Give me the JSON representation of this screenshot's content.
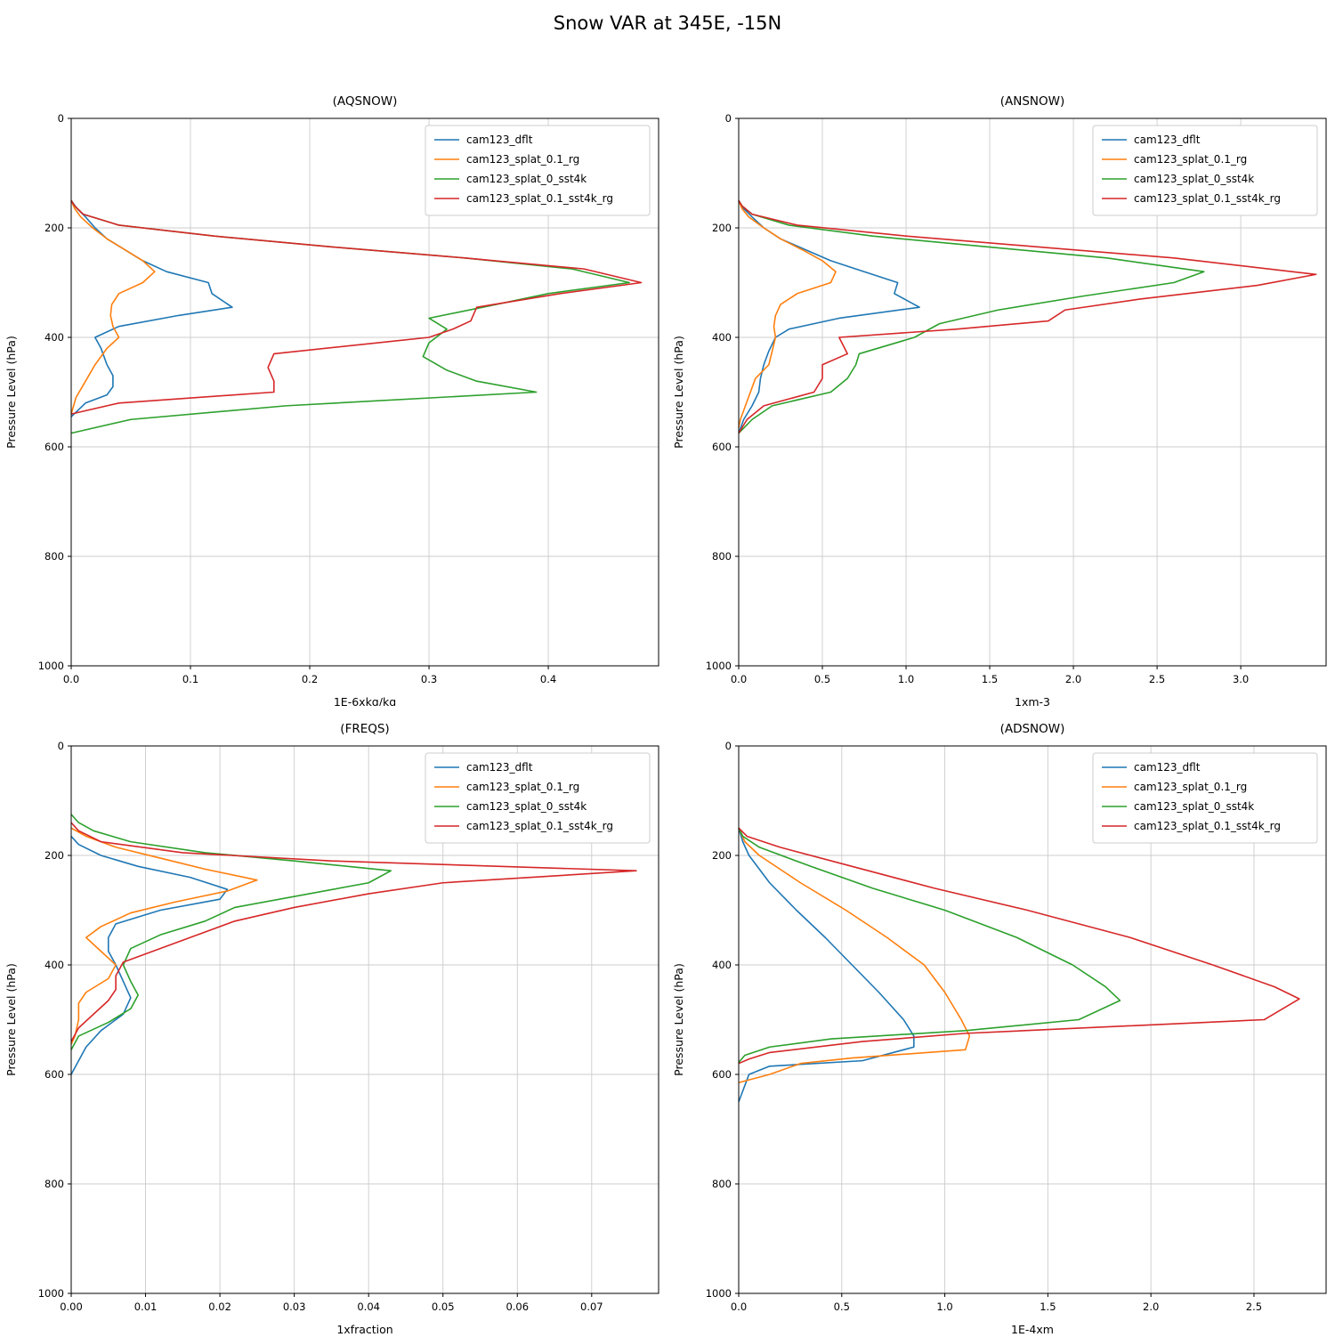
{
  "page_title": "Snow VAR at 345E, -15N",
  "colors": {
    "blue": "#1f77b4",
    "orange": "#ff7f0e",
    "green": "#2ca02c",
    "red": "#d62728"
  },
  "legend_labels": [
    "cam123_dflt",
    "cam123_splat_0.1_rg",
    "cam123_splat_0_sst4k",
    "cam123_splat_0.1_sst4k_rg"
  ],
  "chart_data": [
    {
      "id": "aqsnow",
      "type": "line",
      "title": "(AQSNOW)",
      "xlabel": "1E-6xkg/kg",
      "ylabel": "Pressure Level (hPa)",
      "xlim": [
        0,
        0.4925
      ],
      "ymin": 0,
      "ymax": 1000,
      "y_inverted": true,
      "grid": true,
      "legend_position": "upper right",
      "xticks": [
        0,
        0.1,
        0.2,
        0.3,
        0.4
      ],
      "xtick_labels": [
        "0.0",
        "0.1",
        "0.2",
        "0.3",
        "0.4"
      ],
      "yticks": [
        0,
        200,
        400,
        600,
        800,
        1000
      ],
      "ytick_labels": [
        "0",
        "200",
        "400",
        "600",
        "800",
        "1000"
      ],
      "series": [
        {
          "name": "cam123_dflt",
          "color": "#1f77b4",
          "pressure": [
            150,
            165,
            180,
            200,
            220,
            240,
            260,
            280,
            300,
            320,
            345,
            360,
            380,
            400,
            420,
            450,
            470,
            490,
            505,
            520,
            545
          ],
          "values": [
            0,
            0.005,
            0.012,
            0.02,
            0.03,
            0.045,
            0.06,
            0.08,
            0.115,
            0.118,
            0.135,
            0.09,
            0.04,
            0.02,
            0.025,
            0.03,
            0.035,
            0.035,
            0.03,
            0.012,
            0
          ]
        },
        {
          "name": "cam123_splat_0.1_rg",
          "color": "#ff7f0e",
          "pressure": [
            150,
            165,
            180,
            200,
            220,
            240,
            260,
            280,
            300,
            320,
            340,
            360,
            380,
            400,
            420,
            450,
            480,
            510,
            540
          ],
          "values": [
            0,
            0.003,
            0.008,
            0.018,
            0.03,
            0.045,
            0.06,
            0.07,
            0.06,
            0.04,
            0.034,
            0.033,
            0.035,
            0.04,
            0.03,
            0.02,
            0.012,
            0.004,
            0
          ]
        },
        {
          "name": "cam123_splat_0_sst4k",
          "color": "#2ca02c",
          "pressure": [
            150,
            160,
            175,
            195,
            215,
            235,
            255,
            275,
            300,
            320,
            345,
            365,
            385,
            410,
            435,
            460,
            480,
            500,
            525,
            550,
            575
          ],
          "values": [
            0,
            0.003,
            0.01,
            0.04,
            0.12,
            0.22,
            0.33,
            0.42,
            0.468,
            0.4,
            0.345,
            0.3,
            0.315,
            0.3,
            0.295,
            0.315,
            0.34,
            0.39,
            0.18,
            0.05,
            0
          ]
        },
        {
          "name": "cam123_splat_0.1_sst4k_rg",
          "color": "#d62728",
          "pressure": [
            150,
            160,
            175,
            195,
            215,
            235,
            255,
            275,
            300,
            320,
            345,
            370,
            385,
            400,
            430,
            455,
            480,
            500,
            520,
            540
          ],
          "values": [
            0,
            0.003,
            0.01,
            0.04,
            0.12,
            0.22,
            0.33,
            0.43,
            0.478,
            0.41,
            0.34,
            0.335,
            0.32,
            0.3,
            0.17,
            0.165,
            0.17,
            0.17,
            0.04,
            0
          ]
        }
      ]
    },
    {
      "id": "ansnow",
      "type": "line",
      "title": "(ANSNOW)",
      "xlabel": "1xm-3",
      "ylabel": "Pressure Level (hPa)",
      "xlim": [
        0,
        3.51
      ],
      "ymin": 0,
      "ymax": 1000,
      "y_inverted": true,
      "grid": true,
      "legend_position": "upper right",
      "xticks": [
        0,
        0.5,
        1.0,
        1.5,
        2.0,
        2.5,
        3.0
      ],
      "xtick_labels": [
        "0.0",
        "0.5",
        "1.0",
        "1.5",
        "2.0",
        "2.5",
        "3.0"
      ],
      "yticks": [
        0,
        200,
        400,
        600,
        800,
        1000
      ],
      "ytick_labels": [
        "0",
        "200",
        "400",
        "600",
        "800",
        "1000"
      ],
      "series": [
        {
          "name": "cam123_dflt",
          "color": "#1f77b4",
          "pressure": [
            150,
            165,
            180,
            200,
            220,
            240,
            260,
            280,
            300,
            320,
            345,
            365,
            385,
            400,
            425,
            450,
            475,
            500,
            525,
            550,
            575
          ],
          "values": [
            0,
            0.03,
            0.08,
            0.15,
            0.25,
            0.4,
            0.55,
            0.75,
            0.95,
            0.93,
            1.08,
            0.6,
            0.3,
            0.22,
            0.18,
            0.15,
            0.13,
            0.12,
            0.08,
            0.03,
            0
          ]
        },
        {
          "name": "cam123_splat_0.1_rg",
          "color": "#ff7f0e",
          "pressure": [
            150,
            165,
            180,
            200,
            220,
            240,
            260,
            280,
            300,
            320,
            340,
            360,
            380,
            400,
            425,
            450,
            475,
            500,
            525,
            550,
            565
          ],
          "values": [
            0,
            0.02,
            0.06,
            0.15,
            0.25,
            0.38,
            0.5,
            0.58,
            0.55,
            0.35,
            0.25,
            0.22,
            0.21,
            0.22,
            0.2,
            0.18,
            0.1,
            0.07,
            0.04,
            0.01,
            0
          ]
        },
        {
          "name": "cam123_splat_0_sst4k",
          "color": "#2ca02c",
          "pressure": [
            150,
            160,
            175,
            195,
            215,
            235,
            255,
            280,
            300,
            325,
            350,
            375,
            400,
            430,
            450,
            475,
            500,
            525,
            550,
            575
          ],
          "values": [
            0,
            0.02,
            0.08,
            0.3,
            0.8,
            1.5,
            2.2,
            2.78,
            2.6,
            2.05,
            1.55,
            1.2,
            1.05,
            0.72,
            0.7,
            0.65,
            0.55,
            0.2,
            0.08,
            0
          ]
        },
        {
          "name": "cam123_splat_0.1_sst4k_rg",
          "color": "#d62728",
          "pressure": [
            150,
            160,
            175,
            195,
            215,
            235,
            255,
            285,
            305,
            330,
            350,
            370,
            385,
            400,
            430,
            450,
            475,
            500,
            525,
            550,
            575
          ],
          "values": [
            0,
            0.02,
            0.08,
            0.35,
            1.0,
            1.8,
            2.6,
            3.45,
            3.1,
            2.4,
            1.95,
            1.85,
            1.3,
            0.6,
            0.65,
            0.5,
            0.5,
            0.45,
            0.15,
            0.05,
            0
          ]
        }
      ]
    },
    {
      "id": "freqs",
      "type": "line",
      "title": "(FREQS)",
      "xlabel": "1xfraction",
      "ylabel": "Pressure Level (hPa)",
      "xlim": [
        0,
        0.079
      ],
      "ymin": 0,
      "ymax": 1000,
      "y_inverted": true,
      "grid": true,
      "legend_position": "upper right",
      "xticks": [
        0,
        0.01,
        0.02,
        0.03,
        0.04,
        0.05,
        0.06,
        0.07
      ],
      "xtick_labels": [
        "0.00",
        "0.01",
        "0.02",
        "0.03",
        "0.04",
        "0.05",
        "0.06",
        "0.07"
      ],
      "yticks": [
        0,
        200,
        400,
        600,
        800,
        1000
      ],
      "ytick_labels": [
        "0",
        "200",
        "400",
        "600",
        "800",
        "1000"
      ],
      "series": [
        {
          "name": "cam123_dflt",
          "color": "#1f77b4",
          "pressure": [
            165,
            180,
            200,
            220,
            240,
            262,
            280,
            300,
            325,
            350,
            375,
            400,
            430,
            460,
            490,
            520,
            550,
            575,
            600
          ],
          "values": [
            0,
            0.001,
            0.004,
            0.009,
            0.016,
            0.021,
            0.02,
            0.012,
            0.006,
            0.005,
            0.005,
            0.006,
            0.007,
            0.008,
            0.007,
            0.004,
            0.002,
            0.001,
            0
          ]
        },
        {
          "name": "cam123_splat_0.1_rg",
          "color": "#ff7f0e",
          "pressure": [
            150,
            165,
            185,
            205,
            225,
            245,
            265,
            285,
            305,
            330,
            350,
            375,
            400,
            425,
            450,
            470,
            500,
            530,
            545
          ],
          "values": [
            0,
            0.002,
            0.006,
            0.012,
            0.018,
            0.025,
            0.021,
            0.014,
            0.008,
            0.004,
            0.002,
            0.004,
            0.006,
            0.005,
            0.002,
            0.001,
            0.001,
            0.0005,
            0
          ]
        },
        {
          "name": "cam123_splat_0_sst4k",
          "color": "#2ca02c",
          "pressure": [
            125,
            140,
            155,
            175,
            195,
            210,
            228,
            250,
            270,
            295,
            320,
            345,
            370,
            400,
            430,
            455,
            480,
            505,
            530,
            555
          ],
          "values": [
            0,
            0.001,
            0.003,
            0.008,
            0.018,
            0.03,
            0.043,
            0.04,
            0.032,
            0.022,
            0.018,
            0.012,
            0.008,
            0.007,
            0.008,
            0.009,
            0.008,
            0.005,
            0.001,
            0
          ]
        },
        {
          "name": "cam123_splat_0.1_sst4k_rg",
          "color": "#d62728",
          "pressure": [
            140,
            155,
            175,
            195,
            210,
            228,
            250,
            270,
            295,
            320,
            345,
            370,
            395,
            420,
            445,
            465,
            490,
            515,
            540
          ],
          "values": [
            0,
            0.001,
            0.004,
            0.015,
            0.035,
            0.076,
            0.05,
            0.04,
            0.03,
            0.022,
            0.017,
            0.012,
            0.007,
            0.006,
            0.006,
            0.005,
            0.003,
            0.001,
            0
          ]
        }
      ]
    },
    {
      "id": "adsnow",
      "type": "line",
      "title": "(ADSNOW)",
      "xlabel": "1E-4xm",
      "ylabel": "Pressure Level (hPa)",
      "xlim": [
        0,
        2.85
      ],
      "ymin": 0,
      "ymax": 1000,
      "y_inverted": true,
      "grid": true,
      "legend_position": "upper right",
      "xticks": [
        0,
        0.5,
        1.0,
        1.5,
        2.0,
        2.5
      ],
      "xtick_labels": [
        "0.0",
        "0.5",
        "1.0",
        "1.5",
        "2.0",
        "2.5"
      ],
      "yticks": [
        0,
        200,
        400,
        600,
        800,
        1000
      ],
      "ytick_labels": [
        "0",
        "200",
        "400",
        "600",
        "800",
        "1000"
      ],
      "series": [
        {
          "name": "cam123_dflt",
          "color": "#1f77b4",
          "pressure": [
            150,
            175,
            200,
            250,
            300,
            350,
            400,
            450,
            500,
            530,
            550,
            575,
            585,
            600,
            620,
            650
          ],
          "values": [
            0,
            0.02,
            0.05,
            0.15,
            0.28,
            0.42,
            0.55,
            0.68,
            0.8,
            0.85,
            0.85,
            0.6,
            0.15,
            0.05,
            0.03,
            0
          ]
        },
        {
          "name": "cam123_splat_0.1_rg",
          "color": "#ff7f0e",
          "pressure": [
            150,
            175,
            200,
            250,
            300,
            350,
            400,
            450,
            500,
            530,
            555,
            570,
            580,
            600,
            615
          ],
          "values": [
            0,
            0.03,
            0.1,
            0.3,
            0.52,
            0.72,
            0.9,
            1.0,
            1.08,
            1.12,
            1.1,
            0.55,
            0.3,
            0.15,
            0
          ]
        },
        {
          "name": "cam123_splat_0_sst4k",
          "color": "#2ca02c",
          "pressure": [
            150,
            165,
            185,
            220,
            260,
            300,
            350,
            400,
            440,
            465,
            500,
            520,
            535,
            550,
            565,
            578
          ],
          "values": [
            0,
            0.02,
            0.1,
            0.35,
            0.65,
            1.0,
            1.35,
            1.62,
            1.78,
            1.85,
            1.65,
            1.1,
            0.45,
            0.15,
            0.03,
            0
          ]
        },
        {
          "name": "cam123_splat_0.1_sst4k_rg",
          "color": "#d62728",
          "pressure": [
            150,
            165,
            185,
            220,
            260,
            300,
            350,
            400,
            440,
            462,
            500,
            525,
            540,
            560,
            572,
            580
          ],
          "values": [
            0,
            0.04,
            0.2,
            0.55,
            0.95,
            1.4,
            1.9,
            2.3,
            2.6,
            2.72,
            2.55,
            1.1,
            0.6,
            0.15,
            0.05,
            0
          ]
        }
      ]
    }
  ]
}
